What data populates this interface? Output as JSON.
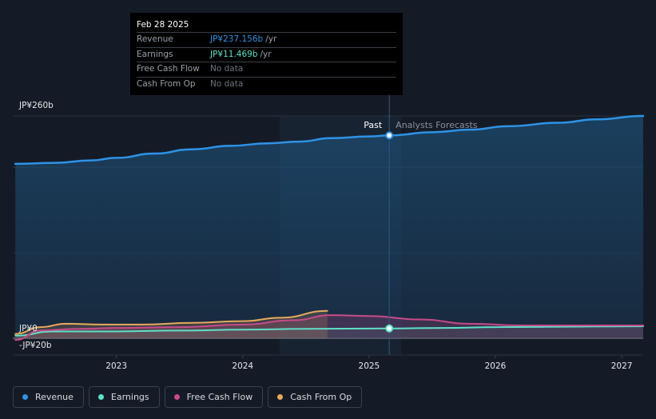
{
  "tooltip": {
    "date": "Feb 28 2025",
    "rows": [
      {
        "label": "Revenue",
        "value": "JP¥237.156b",
        "unit": "/yr",
        "color": "#2e93e6"
      },
      {
        "label": "Earnings",
        "value": "JP¥11.469b",
        "unit": "/yr",
        "color": "#5fe0c7"
      },
      {
        "label": "Free Cash Flow",
        "value": "No data",
        "unit": "",
        "color": "#6e7580"
      },
      {
        "label": "Cash From Op",
        "value": "No data",
        "unit": "",
        "color": "#6e7580"
      }
    ]
  },
  "legend": [
    {
      "label": "Revenue",
      "color": "#2e93e6"
    },
    {
      "label": "Earnings",
      "color": "#5fe0c7"
    },
    {
      "label": "Free Cash Flow",
      "color": "#c84a8a"
    },
    {
      "label": "Cash From Op",
      "color": "#e8a95c"
    }
  ],
  "chart_data": {
    "type": "line",
    "y_tick_labels": [
      "JP¥260b",
      "JP¥0",
      "-JP¥20b"
    ],
    "x_tick_labels": [
      "2023",
      "2024",
      "2025",
      "2026",
      "2027"
    ],
    "ylim": [
      -20,
      260
    ],
    "xlim": [
      2022.18,
      2027.17
    ],
    "divider_x": 2025.16,
    "past_label": "Past",
    "forecast_label": "Analysts Forecasts",
    "grid": true,
    "series": [
      {
        "name": "Revenue",
        "color": "#2e93e6",
        "x": [
          2022.2,
          2022.5,
          2022.8,
          2023.0,
          2023.3,
          2023.6,
          2023.9,
          2024.2,
          2024.45,
          2024.7,
          2025.0,
          2025.16,
          2025.5,
          2025.8,
          2026.1,
          2026.5,
          2026.8,
          2027.17
        ],
        "y": [
          204,
          205,
          208,
          211,
          216,
          221,
          225,
          228,
          230,
          234,
          236,
          237.2,
          241,
          244,
          248,
          252,
          256,
          260
        ]
      },
      {
        "name": "Earnings",
        "color": "#5fe0c7",
        "x": [
          2022.2,
          2022.5,
          2022.8,
          2023.0,
          2023.5,
          2024.0,
          2024.5,
          2025.16,
          2025.6,
          2026.0,
          2026.5,
          2027.17
        ],
        "y": [
          3,
          8,
          8,
          8,
          9,
          10,
          11,
          11.5,
          12,
          13,
          13.5,
          14
        ]
      },
      {
        "name": "Free Cash Flow",
        "color": "#c84a8a",
        "x": [
          2022.2,
          2022.4,
          2022.7,
          2023.0,
          2023.5,
          2024.0,
          2024.4,
          2024.7,
          2025.0,
          2025.4,
          2025.8,
          2026.2,
          2026.7,
          2027.17
        ],
        "y": [
          -2,
          9,
          11,
          12,
          13,
          16,
          21,
          27,
          26,
          22,
          17,
          15,
          15,
          15
        ]
      },
      {
        "name": "Cash From Op",
        "color": "#e8a95c",
        "x": [
          2022.2,
          2022.4,
          2022.6,
          2022.9,
          2023.2,
          2023.6,
          2024.0,
          2024.3,
          2024.67
        ],
        "y": [
          5,
          13,
          17,
          16,
          16,
          18,
          20,
          24,
          32
        ]
      }
    ]
  }
}
